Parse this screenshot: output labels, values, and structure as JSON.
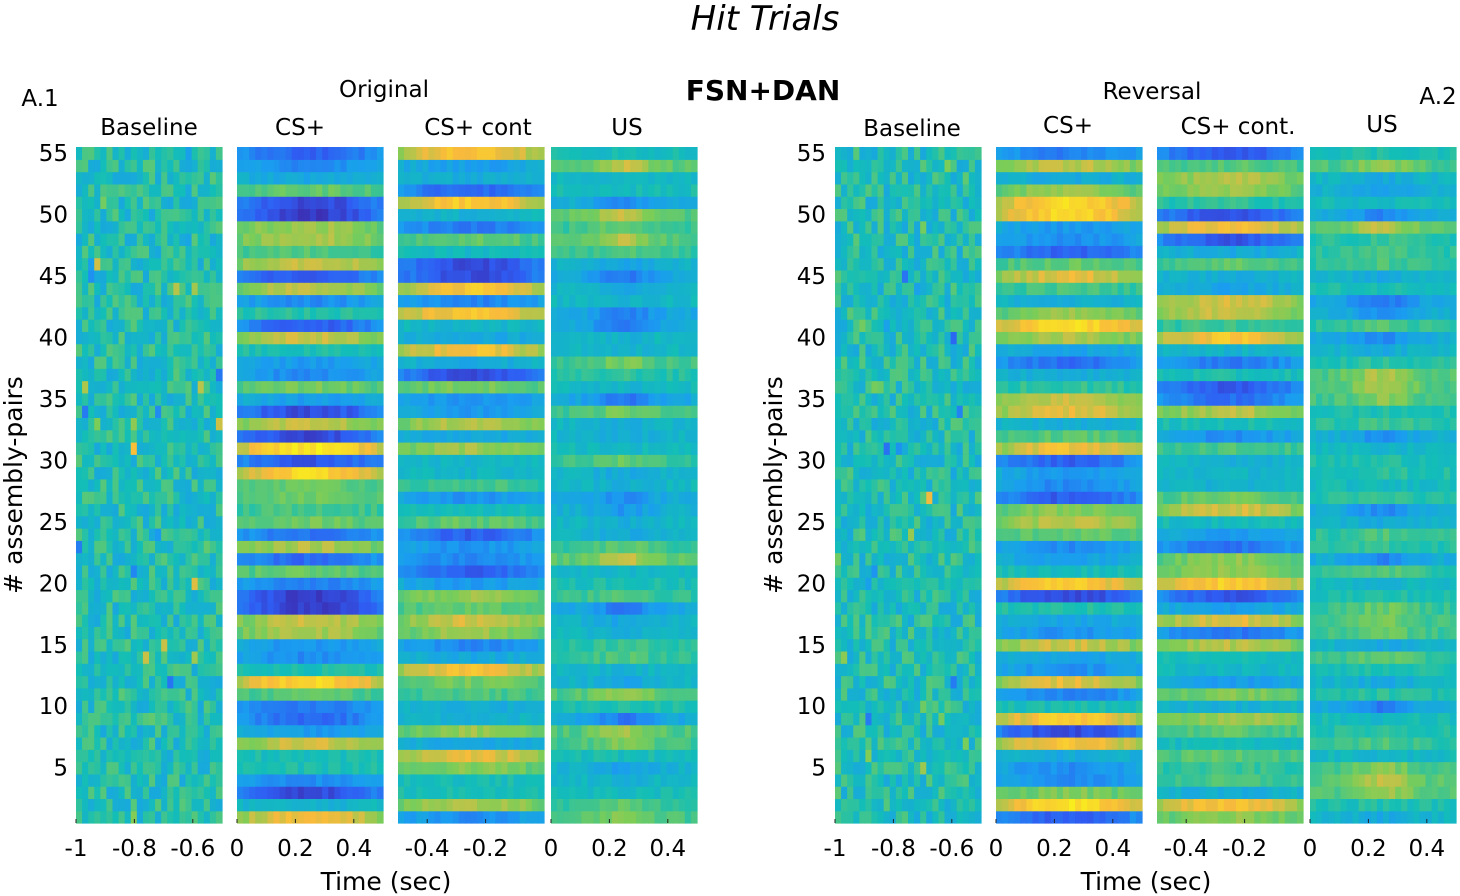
{
  "title": "Hit Trials",
  "subtitle": "FSN+DAN",
  "colormap": [
    "#3e26a8",
    "#2f5df3",
    "#1a9df0",
    "#13beb7",
    "#7ccd57",
    "#f8ba3c",
    "#f9fb15"
  ],
  "chart_data": {
    "type": "heatmap",
    "ylabel": "# assembly-pairs",
    "xlabel": "Time (sec)",
    "n_rows": 55,
    "yticks": [
      5,
      10,
      15,
      20,
      25,
      30,
      35,
      40,
      45,
      50,
      55
    ],
    "panels": [
      {
        "label": "A.1",
        "condition": "Original",
        "segments": [
          {
            "name": "Baseline",
            "range": [
              -1,
              -0.5
            ],
            "ticks": [
              "-1",
              "-0.8",
              "-0.6"
            ]
          },
          {
            "name": "CS+",
            "range": [
              0,
              0.5
            ],
            "ticks": [
              "0",
              "0.2",
              "0.4"
            ]
          },
          {
            "name": "CS+ cont",
            "range": [
              -0.5,
              0
            ],
            "ticks": [
              "-0.4",
              "-0.2"
            ]
          },
          {
            "name": "US",
            "range": [
              0,
              0.5
            ],
            "ticks": [
              "0",
              "0.2",
              "0.4"
            ]
          }
        ]
      },
      {
        "label": "A.2",
        "condition": "Reversal",
        "segments": [
          {
            "name": "Baseline",
            "range": [
              -1,
              -0.5
            ],
            "ticks": [
              "-1",
              "-0.8",
              "-0.6"
            ]
          },
          {
            "name": "CS+",
            "range": [
              0,
              0.5
            ],
            "ticks": [
              "0",
              "0.2",
              "0.4"
            ]
          },
          {
            "name": "CS+ cont.",
            "range": [
              -0.5,
              0
            ],
            "ticks": [
              "-0.4",
              "-0.2"
            ]
          },
          {
            "name": "US",
            "range": [
              0,
              0.5
            ],
            "ticks": [
              "0",
              "0.2",
              "0.4"
            ]
          }
        ]
      }
    ]
  }
}
